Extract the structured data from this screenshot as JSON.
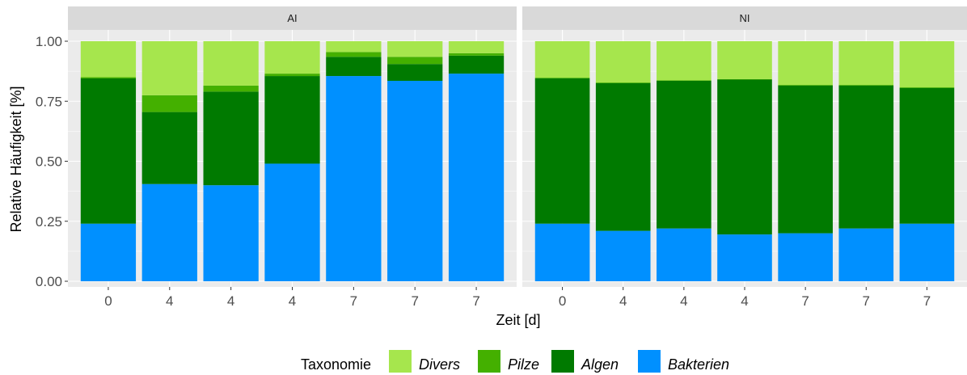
{
  "chart_data": {
    "type": "bar",
    "stacked": true,
    "xlabel": "Zeit [d]",
    "ylabel": "Relative Häufigkeit [%]",
    "ylim": [
      0,
      1
    ],
    "yticks": [
      "0.00",
      "0.25",
      "0.50",
      "0.75",
      "1.00"
    ],
    "legend": {
      "title": "Taxonomie",
      "position": "bottom",
      "items": [
        {
          "name": "Divers",
          "color": "#a6e64d"
        },
        {
          "name": "Pilze",
          "color": "#44b000"
        },
        {
          "name": "Algen",
          "color": "#007a00"
        },
        {
          "name": "Bakterien",
          "color": "#0090ff"
        }
      ]
    },
    "panels": [
      {
        "label": "AI",
        "categories": [
          "0",
          "4",
          "4",
          "4",
          "7",
          "7",
          "7"
        ],
        "series": [
          {
            "name": "Bakterien",
            "values": [
              0.24,
              0.405,
              0.4,
              0.49,
              0.855,
              0.835,
              0.865
            ]
          },
          {
            "name": "Algen",
            "values": [
              0.605,
              0.3,
              0.39,
              0.365,
              0.08,
              0.07,
              0.075
            ]
          },
          {
            "name": "Pilze",
            "values": [
              0.005,
              0.07,
              0.025,
              0.01,
              0.02,
              0.03,
              0.01
            ]
          },
          {
            "name": "Divers",
            "values": [
              0.15,
              0.225,
              0.185,
              0.135,
              0.045,
              0.065,
              0.05
            ]
          }
        ]
      },
      {
        "label": "NI",
        "categories": [
          "0",
          "4",
          "4",
          "4",
          "7",
          "7",
          "7"
        ],
        "series": [
          {
            "name": "Bakterien",
            "values": [
              0.24,
              0.21,
              0.22,
              0.195,
              0.2,
              0.22,
              0.24
            ]
          },
          {
            "name": "Algen",
            "values": [
              0.605,
              0.615,
              0.615,
              0.645,
              0.615,
              0.595,
              0.565
            ]
          },
          {
            "name": "Pilze",
            "values": [
              0.003,
              0.003,
              0.002,
              0.002,
              0.003,
              0.003,
              0.003
            ]
          },
          {
            "name": "Divers",
            "values": [
              0.152,
              0.172,
              0.163,
              0.158,
              0.182,
              0.182,
              0.192
            ]
          }
        ]
      }
    ]
  }
}
